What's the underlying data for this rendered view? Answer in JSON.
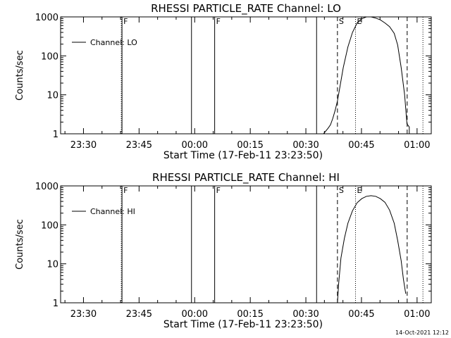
{
  "footer": {
    "timestamp": "14-Oct-2021 12:12"
  },
  "chart_data": [
    {
      "type": "line",
      "title": "RHESSI PARTICLE_RATE Channel: LO",
      "xlabel": "Start Time (17-Feb-11 23:23:50)",
      "ylabel": "Counts/sec",
      "yscale": "log",
      "ylim": [
        1,
        1000
      ],
      "xlim_minutes_from_start": [
        0,
        100
      ],
      "x_ticks": [
        {
          "label": "23:30",
          "t": 6.17
        },
        {
          "label": "23:45",
          "t": 21.17
        },
        {
          "label": "00:00",
          "t": 36.17
        },
        {
          "label": "00:15",
          "t": 51.17
        },
        {
          "label": "00:30",
          "t": 66.17
        },
        {
          "label": "00:45",
          "t": 81.17
        },
        {
          "label": "01:00",
          "t": 96.17
        }
      ],
      "y_ticks": [
        {
          "label": "1",
          "value": 1
        },
        {
          "label": "10",
          "value": 10
        },
        {
          "label": "100",
          "value": 100
        },
        {
          "label": "1000",
          "value": 1000
        }
      ],
      "legend": {
        "entries": [
          "Channel: LO"
        ],
        "placement": "top-left"
      },
      "markers": [
        {
          "label": "F",
          "t": 26.5,
          "style": "solid"
        },
        {
          "label": "",
          "t": 26.2,
          "style": "dotted"
        },
        {
          "label": "",
          "t": 56.5,
          "style": "solid"
        },
        {
          "label": "F",
          "t": 66.5,
          "style": "solid"
        },
        {
          "label": "",
          "t": 110.5,
          "style": "solid"
        },
        {
          "label": "S",
          "t": 119.5,
          "style": "dashed"
        },
        {
          "label": "E",
          "t": 127.3,
          "style": "dotted"
        },
        {
          "label": "",
          "t": 149.6,
          "style": "dashed"
        },
        {
          "label": "",
          "t": 156.4,
          "style": "dotted"
        }
      ],
      "series": [
        {
          "name": "Channel: LO",
          "segments": [
            [
              [
                0,
                1000
              ],
              [
                0.8,
                980
              ]
            ],
            [
              [
                113.5,
                1
              ],
              [
                115.5,
                1.4
              ],
              [
                116.5,
                1.7
              ],
              [
                117.5,
                2.5
              ],
              [
                118.5,
                4
              ],
              [
                119.5,
                7
              ],
              [
                120.5,
                15
              ],
              [
                122,
                50
              ],
              [
                124,
                170
              ],
              [
                126,
                400
              ],
              [
                128,
                700
              ],
              [
                130,
                900
              ],
              [
                132,
                1000
              ],
              [
                134,
                1000
              ],
              [
                136,
                930
              ],
              [
                138,
                840
              ],
              [
                140,
                700
              ],
              [
                142,
                560
              ],
              [
                144,
                380
              ],
              [
                145.5,
                190
              ],
              [
                147,
                50
              ],
              [
                148.5,
                10
              ],
              [
                149.5,
                1.8
              ],
              [
                150.5,
                1.5
              ],
              [
                150.5,
                1
              ]
            ]
          ]
        }
      ]
    },
    {
      "type": "line",
      "title": "RHESSI PARTICLE_RATE Channel: HI",
      "xlabel": "Start Time (17-Feb-11 23:23:50)",
      "ylabel": "Counts/sec",
      "yscale": "log",
      "ylim": [
        1,
        1000
      ],
      "xlim_minutes_from_start": [
        0,
        100
      ],
      "x_ticks": [
        {
          "label": "23:30",
          "t": 6.17
        },
        {
          "label": "23:45",
          "t": 21.17
        },
        {
          "label": "00:00",
          "t": 36.17
        },
        {
          "label": "00:15",
          "t": 51.17
        },
        {
          "label": "00:30",
          "t": 66.17
        },
        {
          "label": "00:45",
          "t": 81.17
        },
        {
          "label": "01:00",
          "t": 96.17
        }
      ],
      "y_ticks": [
        {
          "label": "1",
          "value": 1
        },
        {
          "label": "10",
          "value": 10
        },
        {
          "label": "100",
          "value": 100
        },
        {
          "label": "1000",
          "value": 1000
        }
      ],
      "legend": {
        "entries": [
          "Channel: HI"
        ],
        "placement": "top-left"
      },
      "markers": [
        {
          "label": "F",
          "t": 26.5,
          "style": "solid"
        },
        {
          "label": "",
          "t": 26.2,
          "style": "dotted"
        },
        {
          "label": "",
          "t": 56.5,
          "style": "solid"
        },
        {
          "label": "F",
          "t": 66.5,
          "style": "solid"
        },
        {
          "label": "",
          "t": 110.5,
          "style": "solid"
        },
        {
          "label": "S",
          "t": 119.5,
          "style": "dashed"
        },
        {
          "label": "E",
          "t": 127.3,
          "style": "dotted"
        },
        {
          "label": "",
          "t": 149.6,
          "style": "dashed"
        },
        {
          "label": "",
          "t": 156.4,
          "style": "dotted"
        }
      ],
      "series": [
        {
          "name": "Channel: HI",
          "segments": [
            [
              [
                0,
                1000
              ],
              [
                0.8,
                980
              ]
            ],
            [
              [
                119.5,
                1
              ],
              [
                120,
                3
              ],
              [
                121,
                14
              ],
              [
                122.5,
                45
              ],
              [
                124,
                110
              ],
              [
                126,
                230
              ],
              [
                128,
                370
              ],
              [
                130,
                470
              ],
              [
                132,
                540
              ],
              [
                134,
                560
              ],
              [
                136,
                540
              ],
              [
                138,
                470
              ],
              [
                140,
                380
              ],
              [
                142,
                240
              ],
              [
                144,
                110
              ],
              [
                145.5,
                40
              ],
              [
                147,
                12
              ],
              [
                148,
                4
              ],
              [
                149,
                1.7
              ]
            ]
          ]
        }
      ]
    }
  ]
}
